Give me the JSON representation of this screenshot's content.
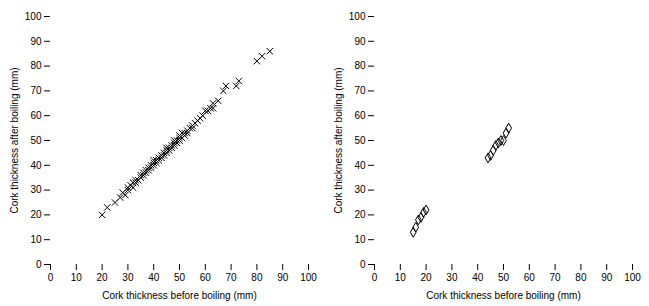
{
  "chart_data": [
    {
      "type": "scatter",
      "x": [
        20,
        22,
        25,
        27,
        28,
        29,
        30,
        30,
        31,
        32,
        32,
        33,
        33,
        34,
        35,
        35,
        36,
        36,
        37,
        37,
        38,
        38,
        39,
        39,
        40,
        40,
        40,
        41,
        41,
        42,
        42,
        43,
        43,
        44,
        44,
        45,
        45,
        45,
        46,
        46,
        47,
        47,
        48,
        48,
        48,
        49,
        49,
        50,
        50,
        50,
        51,
        51,
        52,
        52,
        53,
        53,
        54,
        55,
        55,
        56,
        57,
        58,
        59,
        60,
        61,
        62,
        63,
        63,
        65,
        67,
        68,
        72,
        73,
        80,
        82,
        85
      ],
      "values": [
        20,
        23,
        25,
        27,
        29,
        28,
        30,
        31,
        32,
        31,
        33,
        33,
        34,
        34,
        35,
        36,
        36,
        37,
        37,
        38,
        38,
        39,
        39,
        40,
        40,
        41,
        42,
        41,
        42,
        42,
        43,
        43,
        44,
        44,
        45,
        45,
        46,
        47,
        46,
        47,
        47,
        48,
        48,
        49,
        50,
        49,
        50,
        50,
        51,
        52,
        51,
        53,
        52,
        53,
        53,
        54,
        55,
        55,
        56,
        57,
        58,
        59,
        60,
        62,
        62,
        63,
        63,
        65,
        66,
        70,
        72,
        72,
        74,
        82,
        84,
        86
      ],
      "xlabel": "Cork thickness before boiling (mm)",
      "ylabel": "Cork thickness after boiling (mm)",
      "xlim": [
        0,
        100
      ],
      "ylim": [
        0,
        100
      ],
      "xticks": [
        0,
        10,
        20,
        30,
        40,
        50,
        60,
        70,
        80,
        90,
        100
      ],
      "yticks": [
        0,
        10,
        20,
        30,
        40,
        50,
        60,
        70,
        80,
        90,
        100
      ],
      "color": "#000000",
      "marker": "x"
    },
    {
      "type": "scatter",
      "x": [
        15,
        16,
        17,
        18,
        19,
        20,
        44,
        45,
        46,
        47,
        48,
        49,
        50,
        51,
        52
      ],
      "values": [
        13,
        15,
        18,
        19,
        21,
        22,
        43,
        44,
        46,
        48,
        49,
        50,
        50,
        53,
        55
      ],
      "xlabel": "Cork thickness before boiling (mm)",
      "ylabel": "Cork thickness after boiling (mm)",
      "xlim": [
        0,
        100
      ],
      "ylim": [
        0,
        100
      ],
      "xticks": [
        0,
        10,
        20,
        30,
        40,
        50,
        60,
        70,
        80,
        90,
        100
      ],
      "yticks": [
        0,
        10,
        20,
        30,
        40,
        50,
        60,
        70,
        80,
        90,
        100
      ],
      "color": "#000000",
      "marker": "diamond"
    }
  ]
}
